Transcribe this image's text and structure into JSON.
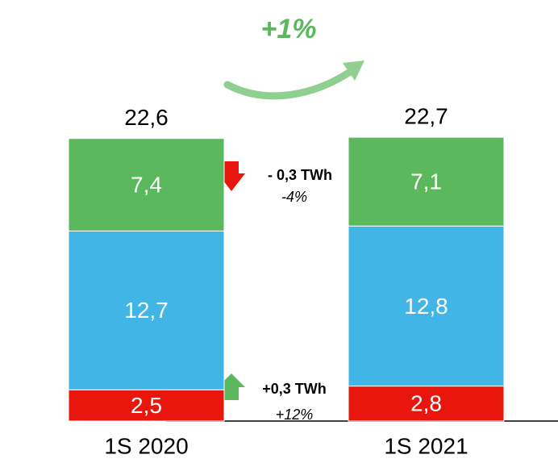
{
  "chart_data": {
    "type": "stacked-bar",
    "categories": [
      "1S 2020",
      "1S 2021"
    ],
    "series": [
      {
        "color": "#e8160c",
        "values": [
          2.5,
          2.8
        ],
        "value_labels": [
          "2,5",
          "2,8"
        ]
      },
      {
        "color": "#41b6e6",
        "values": [
          12.7,
          12.8
        ],
        "value_labels": [
          "12,7",
          "12,8"
        ]
      },
      {
        "color": "#5cb85c",
        "values": [
          7.4,
          7.1
        ],
        "value_labels": [
          "7,4",
          "7,1"
        ]
      }
    ],
    "totals": {
      "values": [
        22.6,
        22.7
      ],
      "value_labels": [
        "22,6",
        "22,7"
      ]
    },
    "growth": "+1%",
    "annotations": [
      {
        "change": "- 0,3 TWh",
        "percent": "-4%"
      },
      {
        "change": "+0,3 TWh",
        "percent": "+12%"
      }
    ]
  }
}
